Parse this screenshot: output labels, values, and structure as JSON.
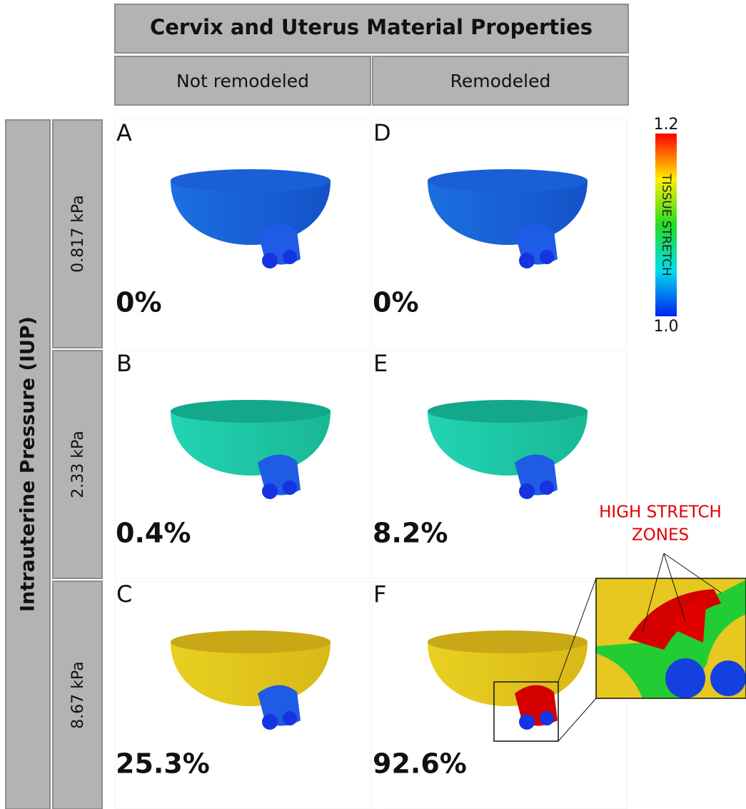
{
  "header": {
    "title": "Cervix and Uterus Material Properties",
    "columns": [
      "Not remodeled",
      "Remodeled"
    ]
  },
  "row_header": {
    "title": "Intrauterine Pressure (IUP)",
    "rows": [
      "0.817 kPa",
      "2.33 kPa",
      "8.67 kPa"
    ]
  },
  "panels": [
    [
      {
        "letter": "A",
        "value": "0%"
      },
      {
        "letter": "D",
        "value": "0%"
      }
    ],
    [
      {
        "letter": "B",
        "value": "0.4%"
      },
      {
        "letter": "E",
        "value": "8.2%"
      }
    ],
    [
      {
        "letter": "C",
        "value": "25.3%"
      },
      {
        "letter": "F",
        "value": "92.6%"
      }
    ]
  ],
  "colorbar": {
    "label": "TISSUE STRETCH",
    "max": "1.2",
    "min": "1.0"
  },
  "annotation": [
    "HIGH STRETCH",
    "ZONES"
  ]
}
